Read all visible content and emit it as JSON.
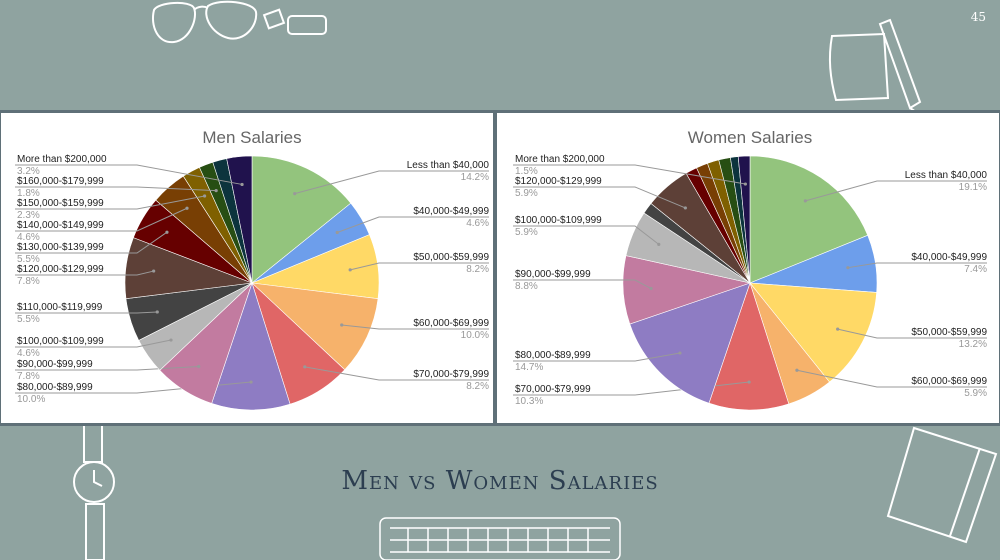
{
  "slide": {
    "page_number": "45",
    "title": "Men vs Women Salaries",
    "background": "#8fa3a0"
  },
  "chart_data": [
    {
      "type": "pie",
      "title": "Men Salaries",
      "slices": [
        {
          "label": "Less than $40,000",
          "percent": "14.2%",
          "value": 14.2,
          "color": "#93c47d"
        },
        {
          "label": "$40,000-$49,999",
          "percent": "4.6%",
          "value": 4.6,
          "color": "#6d9eeb"
        },
        {
          "label": "$50,000-$59,999",
          "percent": "8.2%",
          "value": 8.2,
          "color": "#ffd966"
        },
        {
          "label": "$60,000-$69,999",
          "percent": "10.0%",
          "value": 10.0,
          "color": "#f6b26b"
        },
        {
          "label": "$70,000-$79,999",
          "percent": "8.2%",
          "value": 8.2,
          "color": "#e06666"
        },
        {
          "label": "$80,000-$89,999",
          "percent": "10.0%",
          "value": 10.0,
          "color": "#8e7cc3"
        },
        {
          "label": "$90,000-$99,999",
          "percent": "7.8%",
          "value": 7.8,
          "color": "#c27ba0"
        },
        {
          "label": "$100,000-$109,999",
          "percent": "4.6%",
          "value": 4.6,
          "color": "#b7b7b7"
        },
        {
          "label": "$110,000-$119,999",
          "percent": "5.5%",
          "value": 5.5,
          "color": "#434343"
        },
        {
          "label": "$120,000-$129,999",
          "percent": "7.8%",
          "value": 7.8,
          "color": "#5d4037"
        },
        {
          "label": "$130,000-$139,999",
          "percent": "5.5%",
          "value": 5.5,
          "color": "#660000"
        },
        {
          "label": "$140,000-$149,999",
          "percent": "4.6%",
          "value": 4.6,
          "color": "#783f04"
        },
        {
          "label": "$150,000-$159,999",
          "percent": "2.3%",
          "value": 2.3,
          "color": "#7f6000"
        },
        {
          "label": "$160,000-$179,999",
          "percent": "1.8%",
          "value": 1.8,
          "color": "#274e13"
        },
        {
          "label": "",
          "percent": "",
          "value": 1.8,
          "color": "#0c343d"
        },
        {
          "label": "More than $200,000",
          "percent": "3.2%",
          "value": 3.2,
          "color": "#20124d"
        }
      ]
    },
    {
      "type": "pie",
      "title": "Women Salaries",
      "slices": [
        {
          "label": "Less than $40,000",
          "percent": "19.1%",
          "value": 19.1,
          "color": "#93c47d"
        },
        {
          "label": "$40,000-$49,999",
          "percent": "7.4%",
          "value": 7.4,
          "color": "#6d9eeb"
        },
        {
          "label": "$50,000-$59,999",
          "percent": "13.2%",
          "value": 13.2,
          "color": "#ffd966"
        },
        {
          "label": "$60,000-$69,999",
          "percent": "5.9%",
          "value": 5.9,
          "color": "#f6b26b"
        },
        {
          "label": "$70,000-$79,999",
          "percent": "10.3%",
          "value": 10.3,
          "color": "#e06666"
        },
        {
          "label": "$80,000-$89,999",
          "percent": "14.7%",
          "value": 14.7,
          "color": "#8e7cc3"
        },
        {
          "label": "$90,000-$99,999",
          "percent": "8.8%",
          "value": 8.8,
          "color": "#c27ba0"
        },
        {
          "label": "$100,000-$109,999",
          "percent": "5.9%",
          "value": 5.9,
          "color": "#b7b7b7"
        },
        {
          "label": "",
          "percent": "",
          "value": 1.5,
          "color": "#434343"
        },
        {
          "label": "$120,000-$129,999",
          "percent": "5.9%",
          "value": 5.9,
          "color": "#5d4037"
        },
        {
          "label": "",
          "percent": "",
          "value": 1.5,
          "color": "#660000"
        },
        {
          "label": "",
          "percent": "",
          "value": 1.5,
          "color": "#783f04"
        },
        {
          "label": "",
          "percent": "",
          "value": 1.5,
          "color": "#7f6000"
        },
        {
          "label": "",
          "percent": "",
          "value": 1.5,
          "color": "#274e13"
        },
        {
          "label": "",
          "percent": "",
          "value": 1.0,
          "color": "#0c343d"
        },
        {
          "label": "More than $200,000",
          "percent": "1.5%",
          "value": 1.5,
          "color": "#20124d"
        }
      ]
    }
  ]
}
